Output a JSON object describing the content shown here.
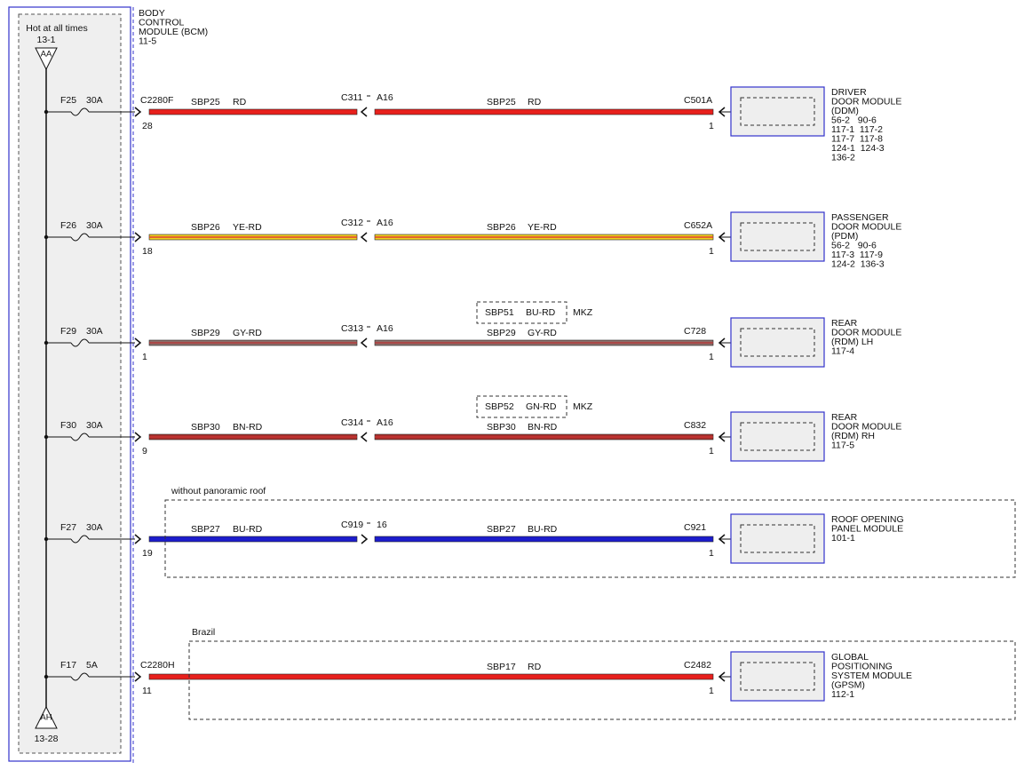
{
  "bcm": {
    "hot_label": "Hot at all times",
    "top_ref": "13-1",
    "top_connector": "AA",
    "bottom_connector": "AH",
    "bottom_ref": "13-28",
    "title_lines": [
      "BODY",
      "CONTROL",
      "MODULE (BCM)",
      "11-5"
    ]
  },
  "circuits": [
    {
      "fuse": "F25",
      "rating": "30A",
      "bcm_connector": "C2280F",
      "bcm_pin": "28",
      "left_circuit": "SBP25",
      "left_color": "RD",
      "inline_connector": "C311",
      "inline_pin": "A16",
      "right_circuit": "SBP25",
      "right_color": "RD",
      "module_connector": "C501A",
      "module_pin": "1",
      "module_lines": [
        "DRIVER",
        "DOOR MODULE",
        "(DDM)",
        "56-2   90-6",
        "117-1  117-2",
        "117-7  117-8",
        "124-1  124-3",
        "136-2"
      ]
    },
    {
      "fuse": "F26",
      "rating": "30A",
      "bcm_pin": "18",
      "left_circuit": "SBP26",
      "left_color": "YE-RD",
      "inline_connector": "C312",
      "inline_pin": "A16",
      "right_circuit": "SBP26",
      "right_color": "YE-RD",
      "module_connector": "C652A",
      "module_pin": "1",
      "module_lines": [
        "PASSENGER",
        "DOOR MODULE",
        "(PDM)",
        "56-2   90-6",
        "117-3  117-9",
        "124-2  136-3"
      ]
    },
    {
      "fuse": "F29",
      "rating": "30A",
      "bcm_pin": "1",
      "left_circuit": "SBP29",
      "left_color": "GY-RD",
      "inline_connector": "C313",
      "inline_pin": "A16",
      "right_circuit": "SBP29",
      "right_color": "GY-RD",
      "module_connector": "C728",
      "module_pin": "1",
      "option": {
        "circuit": "SBP51",
        "color": "BU-RD",
        "variant": "MKZ"
      },
      "module_lines": [
        "REAR",
        "DOOR MODULE",
        "(RDM) LH",
        "117-4"
      ]
    },
    {
      "fuse": "F30",
      "rating": "30A",
      "bcm_pin": "9",
      "left_circuit": "SBP30",
      "left_color": "BN-RD",
      "inline_connector": "C314",
      "inline_pin": "A16",
      "right_circuit": "SBP30",
      "right_color": "BN-RD",
      "module_connector": "C832",
      "module_pin": "1",
      "option": {
        "circuit": "SBP52",
        "color": "GN-RD",
        "variant": "MKZ"
      },
      "module_lines": [
        "REAR",
        "DOOR MODULE",
        "(RDM) RH",
        "117-5"
      ]
    },
    {
      "fuse": "F27",
      "rating": "30A",
      "bcm_pin": "19",
      "left_circuit": "SBP27",
      "left_color": "BU-RD",
      "inline_connector": "C919",
      "inline_pin": "16",
      "right_circuit": "SBP27",
      "right_color": "BU-RD",
      "module_connector": "C921",
      "module_pin": "1",
      "module_lines": [
        "ROOF OPENING",
        "PANEL MODULE",
        "101-1"
      ]
    },
    {
      "fuse": "F17",
      "rating": "5A",
      "bcm_connector": "C2280H",
      "bcm_pin": "11",
      "right_circuit": "SBP17",
      "right_color": "RD",
      "module_connector": "C2482",
      "module_pin": "1",
      "module_lines": [
        "GLOBAL",
        "POSITIONING",
        "SYSTEM MODULE",
        "(GPSM)",
        "112-1"
      ]
    }
  ],
  "regions": [
    "without panoramic roof",
    "Brazil"
  ]
}
